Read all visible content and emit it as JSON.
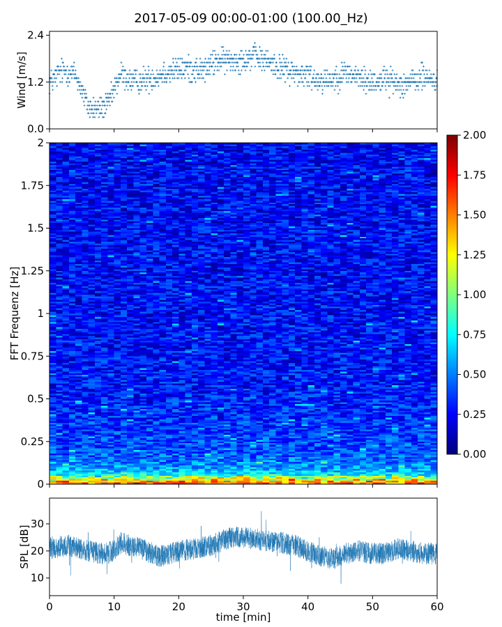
{
  "title": "2017-05-09 00:00-01:00 (100.00_Hz)",
  "chart_data": [
    {
      "id": "wind",
      "type": "scatter",
      "ylabel": "Wind [m/s]",
      "xlim": [
        0,
        60
      ],
      "ylim": [
        0,
        2.5
      ],
      "yticks": [
        {
          "value": 0.0,
          "label": "0.0"
        },
        {
          "value": 1.2,
          "label": "1.2"
        },
        {
          "value": 2.4,
          "label": "2.4"
        }
      ],
      "color": "#1f77b4",
      "marker": "+",
      "step": 0.1,
      "trend": {
        "x": [
          0,
          2,
          4,
          5,
          6,
          7.5,
          9,
          10,
          11,
          13,
          16,
          18,
          21,
          24,
          26,
          28,
          30,
          32,
          34,
          36,
          38,
          40,
          42,
          44,
          46,
          48,
          50,
          52,
          54,
          56,
          58,
          60
        ],
        "y": [
          1.2,
          1.5,
          1.4,
          1.0,
          0.55,
          0.5,
          0.6,
          1.0,
          1.4,
          1.2,
          1.3,
          1.45,
          1.55,
          1.5,
          1.75,
          1.75,
          1.8,
          1.85,
          1.7,
          1.55,
          1.45,
          1.35,
          1.25,
          1.3,
          1.45,
          1.3,
          1.2,
          1.3,
          1.15,
          1.2,
          1.35,
          1.2
        ]
      },
      "spread": 0.35,
      "n_points": 1200
    },
    {
      "id": "spectrogram",
      "type": "heatmap",
      "ylabel": "FFT Frequenz [Hz]",
      "xlim": [
        0,
        60
      ],
      "ylim": [
        0,
        2
      ],
      "yticks": [
        {
          "value": 0,
          "label": "0"
        },
        {
          "value": 0.25,
          "label": "0.25"
        },
        {
          "value": 0.5,
          "label": "0.5"
        },
        {
          "value": 0.75,
          "label": "0.75"
        },
        {
          "value": 1,
          "label": "1"
        },
        {
          "value": 1.25,
          "label": "1.25"
        },
        {
          "value": 1.5,
          "label": "1.5"
        },
        {
          "value": 1.75,
          "label": "1.75"
        },
        {
          "value": 2,
          "label": "2"
        }
      ],
      "colormap": "jet",
      "clim": [
        0,
        2
      ],
      "colorbar_ticks": [
        "0.00",
        "0.25",
        "0.50",
        "0.75",
        "1.00",
        "1.25",
        "1.50",
        "1.75",
        "2.00"
      ],
      "n_time_bins": 60,
      "n_freq_bins": 200,
      "freq_profile": {
        "f": [
          0.0,
          0.02,
          0.04,
          0.06,
          0.1,
          0.15,
          0.25,
          0.4,
          0.6,
          1.0,
          1.5,
          2.0
        ],
        "level": [
          1.5,
          1.2,
          0.9,
          0.7,
          0.55,
          0.45,
          0.38,
          0.32,
          0.28,
          0.26,
          0.25,
          0.24
        ]
      },
      "noise": 0.2
    },
    {
      "id": "spl",
      "type": "line",
      "xlabel": "time [min]",
      "ylabel": "SPL [dB]",
      "xlim": [
        0,
        60
      ],
      "ylim": [
        3.5,
        39.5
      ],
      "xticks": [
        {
          "value": 0,
          "label": "0"
        },
        {
          "value": 10,
          "label": "10"
        },
        {
          "value": 20,
          "label": "20"
        },
        {
          "value": 30,
          "label": "30"
        },
        {
          "value": 40,
          "label": "40"
        },
        {
          "value": 50,
          "label": "50"
        },
        {
          "value": 60,
          "label": "60"
        }
      ],
      "yticks": [
        {
          "value": 10,
          "label": "10"
        },
        {
          "value": 20,
          "label": "20"
        },
        {
          "value": 30,
          "label": "30"
        }
      ],
      "color": "#1f77b4",
      "trend": {
        "x": [
          0,
          3,
          6,
          8,
          10,
          11,
          14,
          17,
          20,
          23,
          25,
          28,
          30,
          33,
          36,
          38,
          40,
          42,
          44,
          46,
          48,
          50,
          52,
          54,
          56,
          58,
          60
        ],
        "y": [
          21,
          22,
          20,
          19,
          20,
          23,
          21,
          18,
          20,
          21,
          22,
          25,
          25,
          24,
          23,
          22,
          20,
          18,
          17,
          19,
          20,
          19,
          19,
          21,
          20,
          19,
          19
        ]
      },
      "spread": 4,
      "n_points": 3000
    }
  ]
}
